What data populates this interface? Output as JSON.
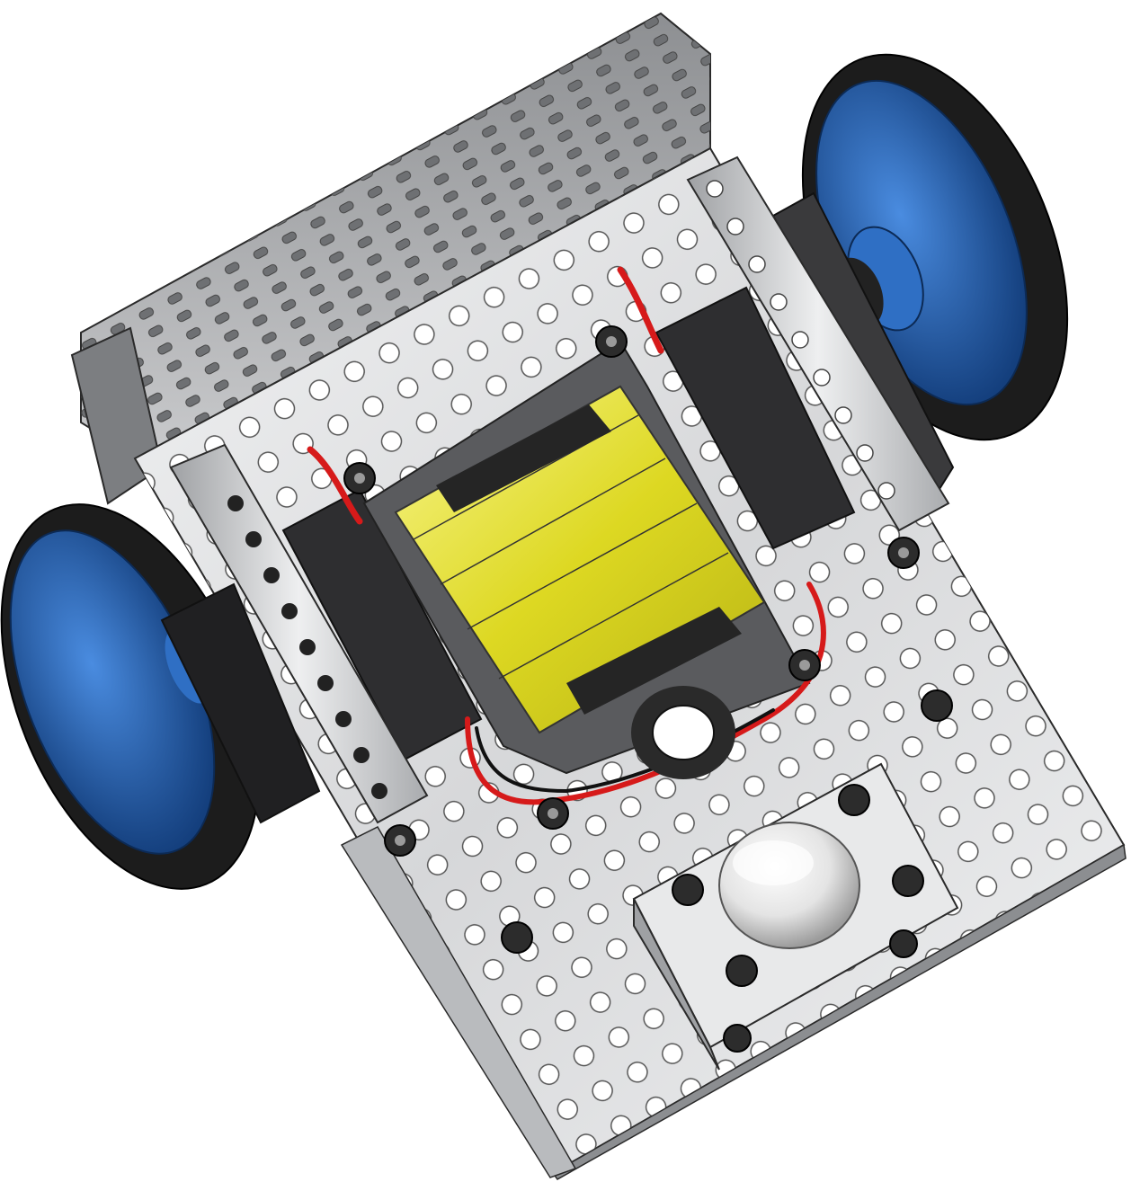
{
  "scene": {
    "subject": "robot-chassis-render",
    "colors": {
      "background": "#ffffff",
      "plate": "#d9dadc",
      "plate_shadow": "#9ea0a3",
      "edge": "#2a2a2a",
      "tire": "#1c1c1c",
      "hub": "#1f5aa8",
      "hub_light": "#3f83d6",
      "battery": "#e3df2c",
      "battery_light": "#f6f27a",
      "servo": "#2e2e30",
      "wire_red": "#d61a1a",
      "wire_black": "#111111",
      "caster": "#f2f2f2"
    },
    "icons": [
      "wheel-icon",
      "battery-pack-icon",
      "servo-motor-icon",
      "caster-ball-icon",
      "wire-harness-icon"
    ]
  }
}
